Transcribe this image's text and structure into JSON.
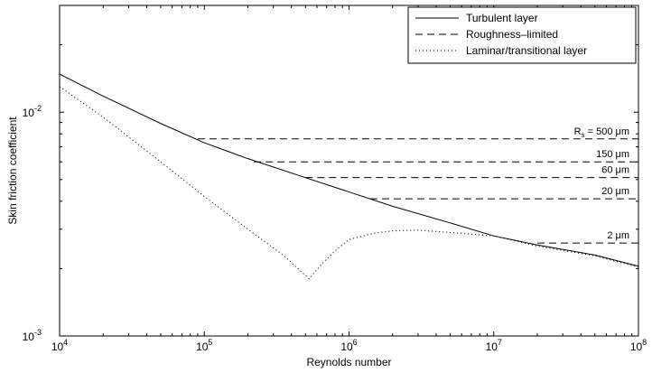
{
  "chart_data": {
    "type": "line",
    "title": "",
    "xlabel": "Reynolds number",
    "ylabel": "Skin friction coefficient",
    "xscale": "log",
    "yscale": "log",
    "xlim": [
      10000,
      100000000
    ],
    "ylim": [
      0.001,
      0.03
    ],
    "grid": false,
    "legend_position": "top-right",
    "x_ticks": [
      {
        "value": 10000,
        "base": "10",
        "exp": "4"
      },
      {
        "value": 100000,
        "base": "10",
        "exp": "5"
      },
      {
        "value": 1000000,
        "base": "10",
        "exp": "6"
      },
      {
        "value": 10000000,
        "base": "10",
        "exp": "7"
      },
      {
        "value": 100000000,
        "base": "10",
        "exp": "8"
      }
    ],
    "y_ticks": [
      {
        "value": 0.001,
        "base": "10",
        "exp": "-3"
      },
      {
        "value": 0.01,
        "base": "10",
        "exp": "-2"
      }
    ],
    "series": [
      {
        "name": "Turbulent layer",
        "style": "solid",
        "color": "#000000",
        "x": [
          10000,
          20000,
          50000,
          100000,
          200000,
          500000,
          1000000,
          2000000,
          5000000,
          10000000,
          20000000,
          50000000,
          100000000
        ],
        "y": [
          0.0148,
          0.0118,
          0.0089,
          0.0073,
          0.0062,
          0.0051,
          0.0044,
          0.0038,
          0.0032,
          0.0028,
          0.00255,
          0.0023,
          0.00205
        ]
      },
      {
        "name": "Roughness–limited",
        "style": "dashed",
        "color": "#000000",
        "segments": [
          {
            "label_prefix": "R",
            "label_sub": "s",
            "label_value": " = 500 μm",
            "y": 0.0076,
            "x_start": 90000,
            "x_end": 100000000
          },
          {
            "label_prefix": "",
            "label_sub": "",
            "label_value": "150 μm",
            "y": 0.006,
            "x_start": 220000,
            "x_end": 100000000
          },
          {
            "label_prefix": "",
            "label_sub": "",
            "label_value": "60 μm",
            "y": 0.0051,
            "x_start": 500000,
            "x_end": 100000000
          },
          {
            "label_prefix": "",
            "label_sub": "",
            "label_value": "20 μm",
            "y": 0.0041,
            "x_start": 1400000,
            "x_end": 100000000
          },
          {
            "label_prefix": "",
            "label_sub": "",
            "label_value": "2 μm",
            "y": 0.0026,
            "x_start": 20000000,
            "x_end": 100000000
          }
        ]
      },
      {
        "name": "Laminar/transitional layer",
        "style": "dotted",
        "color": "#000000",
        "x": [
          10000,
          20000,
          50000,
          100000,
          200000,
          350000,
          530000,
          650000,
          800000,
          1000000,
          1500000,
          2000000,
          3000000,
          5000000,
          10000000,
          20000000,
          50000000,
          100000000
        ],
        "y": [
          0.013,
          0.0095,
          0.006,
          0.0042,
          0.003,
          0.0023,
          0.0018,
          0.0021,
          0.0024,
          0.0027,
          0.00288,
          0.00295,
          0.00297,
          0.0029,
          0.0028,
          0.00252,
          0.00228,
          0.00203
        ]
      }
    ]
  }
}
